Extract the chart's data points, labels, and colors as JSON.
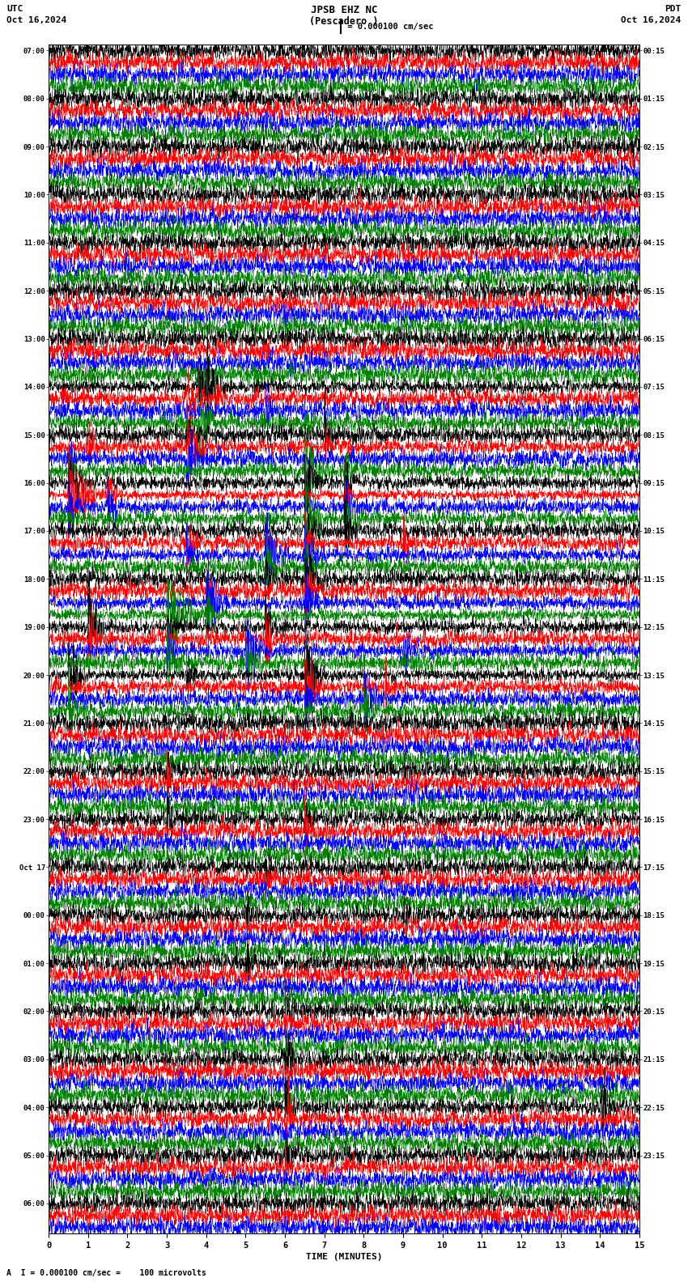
{
  "title_line1": "JPSB EHZ NC",
  "title_line2": "(Pescadero )",
  "scale_label": "= 0.000100 cm/sec",
  "utc_label": "UTC",
  "pdt_label": "PDT",
  "utc_date": "Oct 16,2024",
  "pdt_date": "Oct 16,2024",
  "footer": "A  I = 0.000100 cm/sec =    100 microvolts",
  "xlabel": "TIME (MINUTES)",
  "left_times": [
    "07:00",
    "",
    "",
    "",
    "08:00",
    "",
    "",
    "",
    "09:00",
    "",
    "",
    "",
    "10:00",
    "",
    "",
    "",
    "11:00",
    "",
    "",
    "",
    "12:00",
    "",
    "",
    "",
    "13:00",
    "",
    "",
    "",
    "14:00",
    "",
    "",
    "",
    "15:00",
    "",
    "",
    "",
    "16:00",
    "",
    "",
    "",
    "17:00",
    "",
    "",
    "",
    "18:00",
    "",
    "",
    "",
    "19:00",
    "",
    "",
    "",
    "20:00",
    "",
    "",
    "",
    "21:00",
    "",
    "",
    "",
    "22:00",
    "",
    "",
    "",
    "23:00",
    "",
    "",
    "",
    "Oct 17",
    "",
    "",
    "",
    "00:00",
    "",
    "",
    "",
    "01:00",
    "",
    "",
    "",
    "02:00",
    "",
    "",
    "",
    "03:00",
    "",
    "",
    "",
    "04:00",
    "",
    "",
    "",
    "05:00",
    "",
    "",
    "",
    "06:00",
    "",
    ""
  ],
  "right_times": [
    "00:15",
    "",
    "",
    "",
    "01:15",
    "",
    "",
    "",
    "02:15",
    "",
    "",
    "",
    "03:15",
    "",
    "",
    "",
    "04:15",
    "",
    "",
    "",
    "05:15",
    "",
    "",
    "",
    "06:15",
    "",
    "",
    "",
    "07:15",
    "",
    "",
    "",
    "08:15",
    "",
    "",
    "",
    "09:15",
    "",
    "",
    "",
    "10:15",
    "",
    "",
    "",
    "11:15",
    "",
    "",
    "",
    "12:15",
    "",
    "",
    "",
    "13:15",
    "",
    "",
    "",
    "14:15",
    "",
    "",
    "",
    "15:15",
    "",
    "",
    "",
    "16:15",
    "",
    "",
    "",
    "17:15",
    "",
    "",
    "",
    "18:15",
    "",
    "",
    "",
    "19:15",
    "",
    "",
    "",
    "20:15",
    "",
    "",
    "",
    "21:15",
    "",
    "",
    "",
    "22:15",
    "",
    "",
    "",
    "23:15",
    "",
    "",
    "",
    "",
    "",
    "",
    ""
  ],
  "trace_colors": [
    "black",
    "red",
    "blue",
    "green"
  ],
  "minutes": 15,
  "grid_color": "#888888",
  "grid_minutes": [
    1,
    2,
    3,
    4,
    5,
    6,
    7,
    8,
    9,
    10,
    11,
    12,
    13,
    14
  ]
}
